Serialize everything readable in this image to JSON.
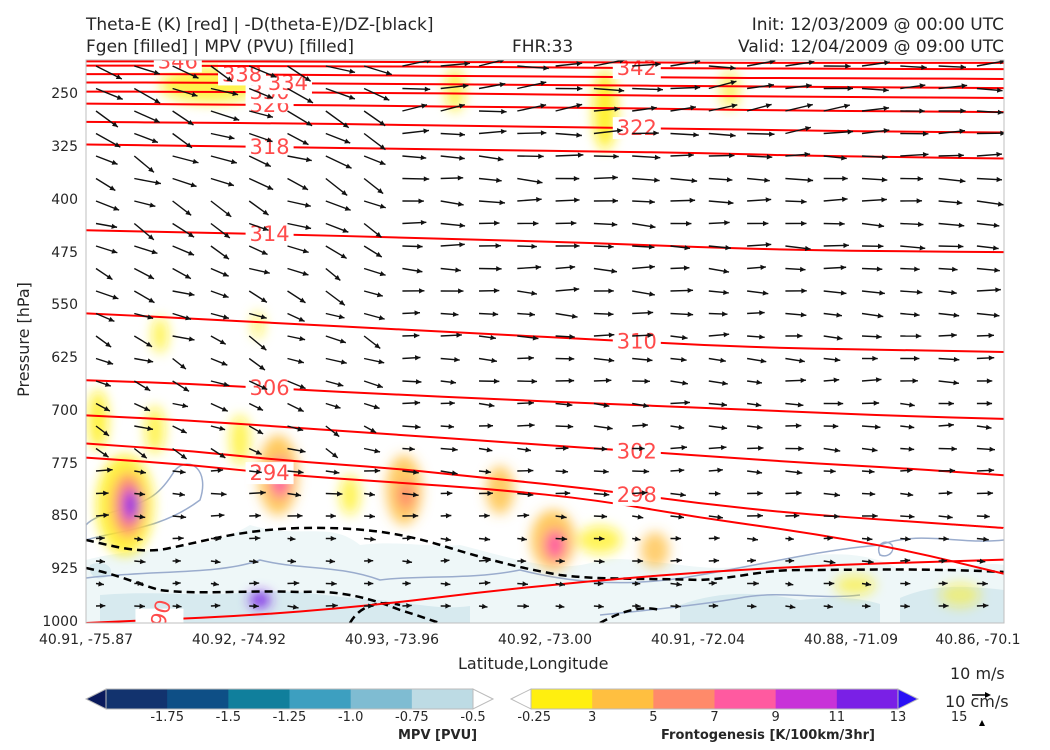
{
  "header": {
    "title_left_1": "Theta-E (K) [red] | -D(theta-E)/DZ-[black]",
    "title_left_2": "Fgen [filled] | MPV (PVU) [filled]",
    "fhr": "FHR:33",
    "init": "Init: 12/03/2009 @ 00:00 UTC",
    "valid": "Valid: 12/04/2009 @ 09:00 UTC"
  },
  "colors": {
    "theta_e": "#ff0000",
    "theta_e_label": "#ff4b4b",
    "stability": "#000000",
    "mpv_outline": "#9aaccd"
  },
  "chart_data": {
    "type": "cross-section",
    "xlabel": "Latitude,Longitude",
    "ylabel": "Pressure [hPa]",
    "y_scale": "pressure-inverted",
    "ylim": [
      1000,
      200
    ],
    "y_ticks": [
      "250",
      "325",
      "400",
      "475",
      "550",
      "625",
      "700",
      "775",
      "850",
      "925",
      "1000"
    ],
    "x_ticks": [
      "40.91, -75.87",
      "40.92, -74.92",
      "40.93, -73.96",
      "40.92, -73.00",
      "40.91, -72.04",
      "40.88, -71.09",
      "40.86, -70.1"
    ],
    "theta_e_contours": [
      {
        "label": "290",
        "values": [
          1000,
          985,
          945,
          920,
          910
        ]
      },
      {
        "label": "294",
        "values": [
          765,
          775,
          790,
          800,
          810,
          825,
          850,
          870,
          895,
          930
        ]
      },
      {
        "label": "298",
        "values": [
          745,
          755,
          770,
          780,
          795,
          810,
          830,
          845,
          855,
          865
        ]
      },
      {
        "label": "302",
        "values": [
          705,
          712,
          722,
          732,
          742,
          752,
          762,
          772,
          780,
          790
        ]
      },
      {
        "label": "306",
        "values": [
          655,
          660,
          668,
          675,
          682,
          688,
          694,
          700,
          706,
          710
        ]
      },
      {
        "label": "310",
        "values": [
          560,
          567,
          575,
          582,
          590,
          597,
          605,
          610,
          612,
          615
        ]
      },
      {
        "label": "314",
        "values": [
          442,
          445,
          448,
          452,
          456,
          460,
          466,
          470,
          472,
          473
        ]
      },
      {
        "label": "318",
        "values": [
          320,
          322,
          324,
          326,
          328,
          330,
          332,
          336,
          338,
          340
        ]
      },
      {
        "label": "322",
        "values": [
          288,
          289,
          290,
          292,
          294,
          296,
          298,
          300,
          302,
          303
        ]
      },
      {
        "label": "326",
        "values": [
          262,
          263,
          264,
          265,
          267,
          268,
          270,
          272,
          273,
          274
        ]
      },
      {
        "label": "330",
        "values": [
          245,
          245,
          246,
          247,
          248,
          250,
          251,
          252,
          253,
          254
        ]
      },
      {
        "label": "334",
        "values": [
          232,
          232,
          233,
          234,
          235,
          236,
          237,
          238,
          239,
          240
        ]
      },
      {
        "label": "338",
        "values": [
          220,
          220,
          221,
          222,
          223,
          224,
          225,
          226,
          226,
          227
        ]
      },
      {
        "label": "342",
        "values": [
          208,
          208,
          209,
          209,
          210,
          211,
          212,
          212,
          213,
          213
        ]
      },
      {
        "label": "346",
        "values": [
          202,
          202,
          202,
          203,
          203,
          203,
          204,
          204,
          204,
          204
        ]
      }
    ],
    "mpv_colorbar": {
      "title": "MPV [PVU]",
      "ticks": [
        "-1.75",
        "-1.5",
        "-1.25",
        "-1.0",
        "-0.75",
        "-0.5",
        "-0.25"
      ],
      "colors": [
        "#0a1a5c",
        "#12336e",
        "#0e4f86",
        "#107f9c",
        "#3d9fc0",
        "#7fbcd2",
        "#bddbe4",
        "#ffffff"
      ]
    },
    "fgen_colorbar": {
      "title": "Frontogenesis [K/100km/3hr]",
      "ticks": [
        "3",
        "5",
        "7",
        "9",
        "11",
        "13",
        "15"
      ],
      "colors": [
        "#ffffff",
        "#ffef0f",
        "#ffbf40",
        "#ff8a6a",
        "#ff5aa0",
        "#c832d8",
        "#7a20e6",
        "#2a10f5"
      ]
    },
    "vector_reference": {
      "horizontal": "10 m/s",
      "vertical": "10 cm/s"
    }
  }
}
